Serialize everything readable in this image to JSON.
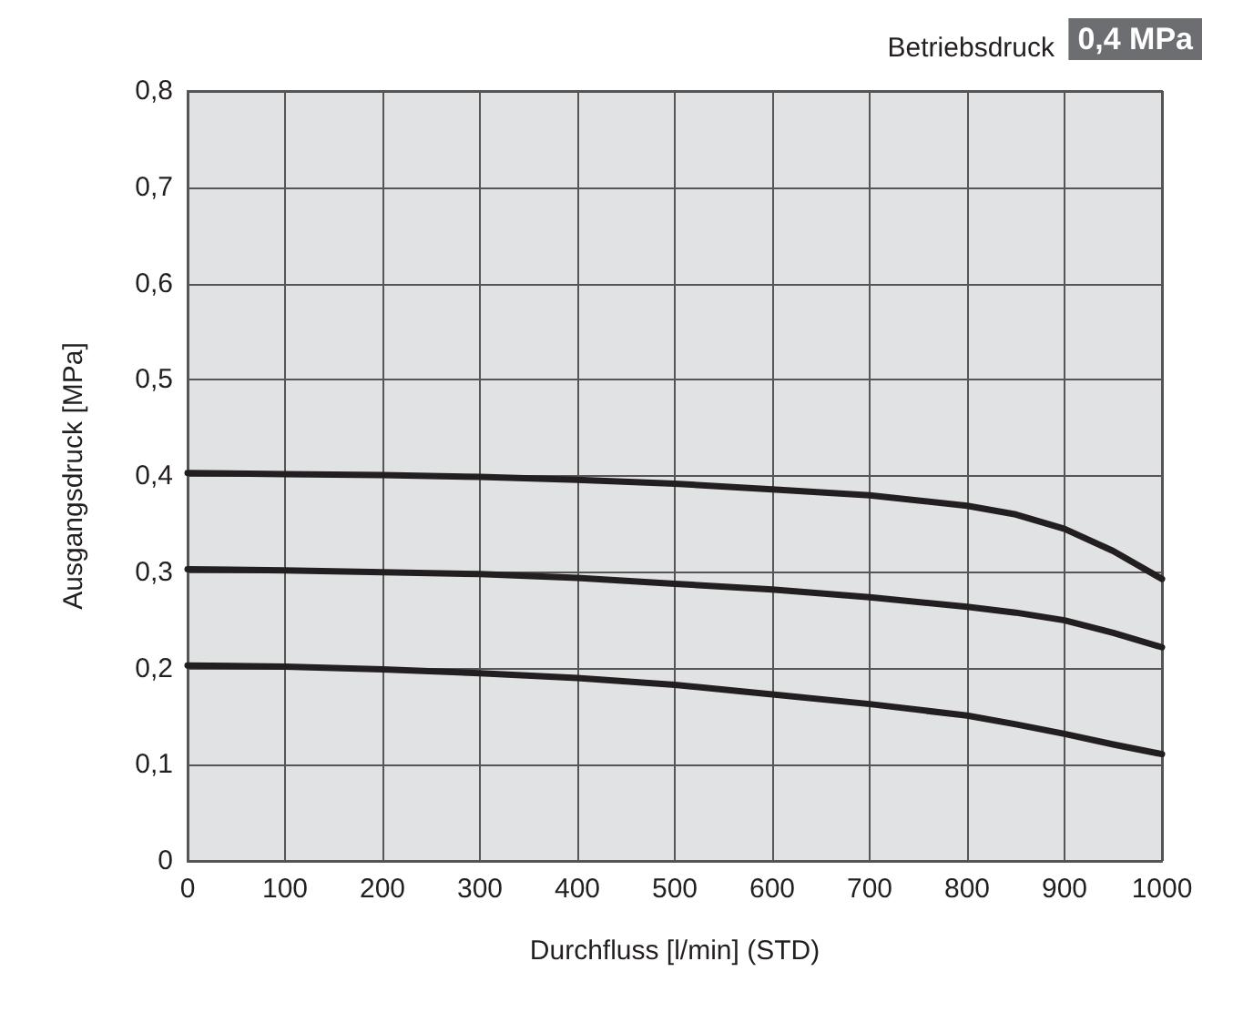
{
  "chart_data": {
    "type": "line",
    "title": "Betriebsdruck",
    "annotations": [
      "0,4 MPa"
    ],
    "xlabel": "Durchfluss [l/min] (STD)",
    "ylabel": "Ausgangsdruck [MPa]",
    "x": [
      0,
      100,
      200,
      300,
      400,
      500,
      600,
      700,
      800,
      850,
      900,
      950,
      1000
    ],
    "series": [
      {
        "color": "#231f20",
        "values": [
          0.403,
          0.402,
          0.401,
          0.399,
          0.396,
          0.392,
          0.386,
          0.38,
          0.369,
          0.36,
          0.345,
          0.322,
          0.293
        ]
      },
      {
        "color": "#231f20",
        "values": [
          0.303,
          0.302,
          0.3,
          0.298,
          0.294,
          0.288,
          0.282,
          0.274,
          0.264,
          0.258,
          0.25,
          0.237,
          0.222
        ]
      },
      {
        "color": "#231f20",
        "values": [
          0.203,
          0.202,
          0.199,
          0.195,
          0.19,
          0.183,
          0.173,
          0.163,
          0.151,
          0.142,
          0.132,
          0.121,
          0.111
        ]
      }
    ],
    "xlim": [
      0,
      1000
    ],
    "xticks": [
      0,
      100,
      200,
      300,
      400,
      500,
      600,
      700,
      800,
      900,
      1000
    ],
    "ylim": [
      0,
      0.8
    ],
    "yticks": [
      0,
      {
        "value": 0.1,
        "label": "0,1"
      },
      {
        "value": 0.2,
        "label": "0,2"
      },
      {
        "value": 0.3,
        "label": "0,3"
      },
      {
        "value": 0.4,
        "label": "0,4"
      },
      {
        "value": 0.5,
        "label": "0,5"
      },
      {
        "value": 0.6,
        "label": "0,6"
      },
      {
        "value": 0.7,
        "label": "0,7"
      },
      {
        "value": 0.8,
        "label": "0,8"
      }
    ],
    "grid": true,
    "marker": "none",
    "line_style": "solid"
  }
}
